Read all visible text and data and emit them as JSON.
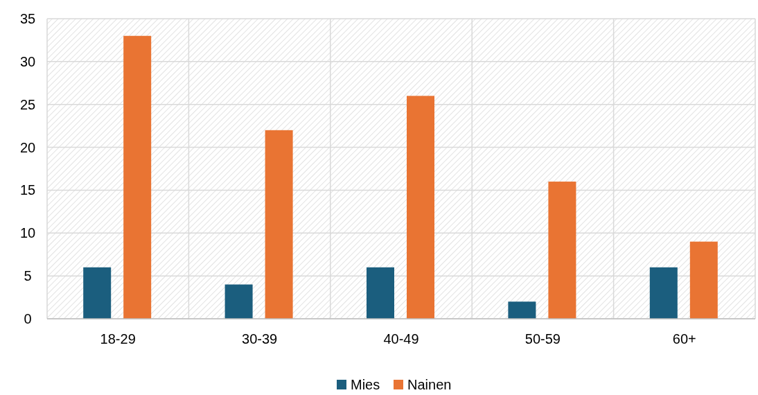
{
  "chart_data": {
    "type": "bar",
    "categories": [
      "18-29",
      "30-39",
      "40-49",
      "50-59",
      "60+"
    ],
    "series": [
      {
        "name": "Mies",
        "color": "#1b5e7e",
        "values": [
          6,
          4,
          6,
          2,
          6
        ]
      },
      {
        "name": "Nainen",
        "color": "#e97433",
        "values": [
          33,
          22,
          26,
          16,
          9
        ]
      }
    ],
    "ylim": [
      0,
      35
    ],
    "yticks": [
      0,
      5,
      10,
      15,
      20,
      25,
      30,
      35
    ],
    "grid": true,
    "legend": "bottom"
  }
}
